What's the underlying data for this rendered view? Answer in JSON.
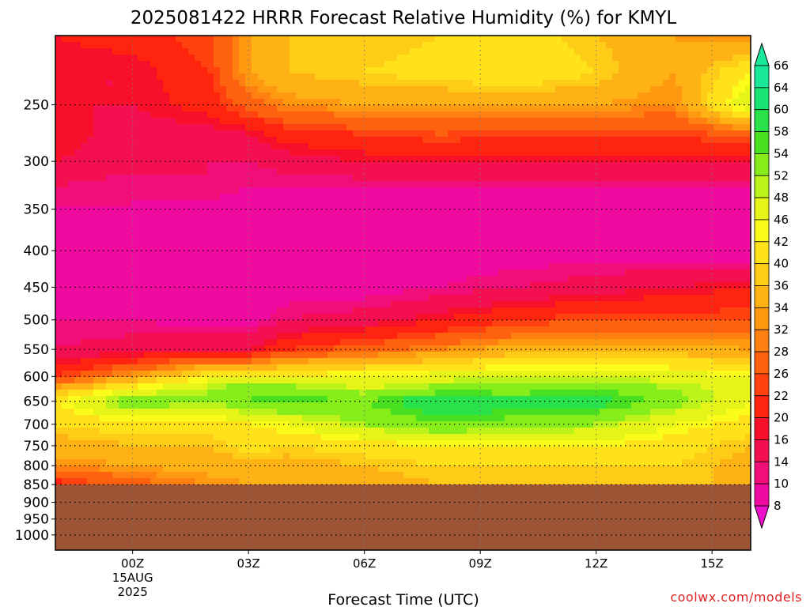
{
  "chart_data": {
    "type": "heatmap",
    "title": "2025081422 HRRR Forecast Relative Humidity (%) for KMYL",
    "xlabel": "Forecast Time (UTC)",
    "ylabel": "",
    "credit": "coolwx.com/models",
    "x_ticks": [
      {
        "hour": 0,
        "label": "00Z",
        "sub": [
          "15AUG",
          "2025"
        ]
      },
      {
        "hour": 3,
        "label": "03Z",
        "sub": []
      },
      {
        "hour": 6,
        "label": "06Z",
        "sub": []
      },
      {
        "hour": 9,
        "label": "09Z",
        "sub": []
      },
      {
        "hour": 12,
        "label": "12Z",
        "sub": []
      },
      {
        "hour": 15,
        "label": "15Z",
        "sub": []
      }
    ],
    "xlim": [
      -2,
      16
    ],
    "ylim": [
      200,
      1050
    ],
    "y_scale": "log",
    "y_ticks": [
      250,
      300,
      350,
      400,
      450,
      500,
      550,
      600,
      650,
      700,
      750,
      800,
      850,
      900,
      950,
      1000
    ],
    "grid": true,
    "ground_level_hpa": 850,
    "ground_color": "#9c5434",
    "colorbar": {
      "levels": [
        66,
        64,
        60,
        58,
        54,
        52,
        48,
        46,
        42,
        40,
        36,
        34,
        32,
        28,
        26,
        22,
        20,
        16,
        14,
        10,
        8
      ],
      "colors": [
        "#19e89b",
        "#19e474",
        "#29e24b",
        "#49e020",
        "#86ec1a",
        "#bcf31a",
        "#e6f518",
        "#fcfc1a",
        "#ffe21a",
        "#ffcc18",
        "#ffb214",
        "#ff9a10",
        "#ff8010",
        "#ff620f",
        "#ff420f",
        "#ff2410",
        "#f8102a",
        "#f41050",
        "#f20e78",
        "#f00aa0",
        "#ee10c8"
      ]
    },
    "hours": [
      -2,
      0,
      2,
      3,
      4,
      6,
      8,
      10,
      12,
      14,
      16
    ],
    "levels_hpa": [
      200,
      225,
      250,
      275,
      300,
      325,
      350,
      400,
      450,
      500,
      550,
      600,
      625,
      650,
      700,
      750,
      800,
      850
    ],
    "values": [
      [
        22,
        24,
        28,
        36,
        40,
        40,
        42,
        44,
        40,
        36,
        34
      ],
      [
        20,
        20,
        26,
        36,
        40,
        42,
        44,
        46,
        42,
        36,
        46
      ],
      [
        20,
        20,
        24,
        30,
        34,
        36,
        36,
        36,
        36,
        34,
        52
      ],
      [
        22,
        18,
        18,
        20,
        24,
        26,
        28,
        26,
        26,
        26,
        30
      ],
      [
        20,
        18,
        16,
        16,
        18,
        20,
        20,
        20,
        20,
        20,
        20
      ],
      [
        16,
        14,
        16,
        14,
        14,
        14,
        14,
        14,
        14,
        14,
        14
      ],
      [
        14,
        14,
        12,
        12,
        12,
        12,
        12,
        12,
        12,
        12,
        12
      ],
      [
        12,
        12,
        10,
        12,
        10,
        12,
        12,
        12,
        12,
        12,
        10
      ],
      [
        12,
        12,
        10,
        10,
        12,
        12,
        14,
        16,
        18,
        20,
        22
      ],
      [
        14,
        14,
        12,
        12,
        16,
        18,
        22,
        26,
        28,
        28,
        28
      ],
      [
        16,
        18,
        20,
        20,
        26,
        30,
        34,
        38,
        38,
        38,
        36
      ],
      [
        26,
        36,
        46,
        48,
        48,
        48,
        50,
        52,
        52,
        50,
        48
      ],
      [
        38,
        48,
        54,
        58,
        56,
        52,
        56,
        56,
        58,
        54,
        50
      ],
      [
        46,
        58,
        54,
        58,
        60,
        58,
        64,
        62,
        62,
        56,
        48
      ],
      [
        42,
        44,
        44,
        46,
        48,
        54,
        58,
        56,
        54,
        48,
        44
      ],
      [
        38,
        40,
        40,
        44,
        42,
        44,
        46,
        46,
        46,
        44,
        40
      ],
      [
        34,
        36,
        38,
        38,
        38,
        40,
        42,
        42,
        42,
        42,
        38
      ],
      [
        24,
        30,
        34,
        36,
        36,
        38,
        40,
        40,
        40,
        40,
        40
      ]
    ]
  }
}
